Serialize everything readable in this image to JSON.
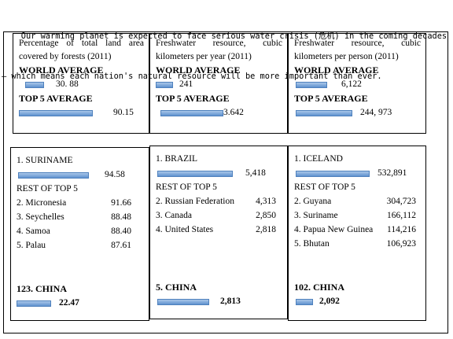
{
  "intro": {
    "line1": "    Our warming planet is expected to face serious water crisis (危机) in the coming decades",
    "line2": "— which means each nation's natural resource will be more important than ever."
  },
  "colors": {
    "bar_fill": "#5f92cf",
    "bar_border": "#4f81bd"
  },
  "top_boxes": [
    {
      "description_lines": [
        "Percentage of total land area",
        "covered by forests (2011)"
      ],
      "world_label": "WORLD AVERAGE",
      "world_value": "30. 88",
      "top5_label": "TOP 5 AVERAGE",
      "top5_value": "90.15"
    },
    {
      "description_lines": [
        "Freshwater resource, cubic",
        "kilometers per year (2011)"
      ],
      "world_label": "WORLD AVERAGE",
      "world_value": "241",
      "top5_label": "TOP 5 AVERAGE",
      "top5_value": "3.642"
    },
    {
      "description_lines": [
        "Freshwater resource, cubic",
        "kilometers per person (2011)"
      ],
      "world_label": "WORLD AVERAGE",
      "world_value": "6,122",
      "top5_label": "TOP 5 AVERAGE",
      "top5_value": "244, 973"
    }
  ],
  "bottom_boxes": [
    {
      "top_name": "1. SURINAME",
      "top_value": "94.58",
      "rest_label": "REST OF TOP 5",
      "rest": [
        {
          "name": "2. Micronesia",
          "value": "91.66"
        },
        {
          "name": "3. Seychelles",
          "value": "88.48"
        },
        {
          "name": "4. Samoa",
          "value": "88.40"
        },
        {
          "name": "5. Palau",
          "value": "87.61"
        }
      ],
      "china_label": "123. CHINA",
      "china_value": "22.47"
    },
    {
      "top_name": "1. BRAZIL",
      "top_value": "5,418",
      "rest_label": "REST OF TOP 5",
      "rest": [
        {
          "name": "2. Russian Federation",
          "value": "4,313"
        },
        {
          "name": "3. Canada",
          "value": "2,850"
        },
        {
          "name": "4. United States",
          "value": "2,818"
        }
      ],
      "china_label": "5. CHINA",
      "china_value": "2,813"
    },
    {
      "top_name": "1. ICELAND",
      "top_value": "532,891",
      "rest_label": "REST OF TOP 5",
      "rest": [
        {
          "name": "2. Guyana",
          "value": "304,723"
        },
        {
          "name": "3. Suriname",
          "value": "166,112"
        },
        {
          "name": "4. Papua New Guinea",
          "value": "114,216"
        },
        {
          "name": "5. Bhutan",
          "value": "106,923"
        }
      ],
      "china_label": "102. CHINA",
      "china_value": "2,092"
    }
  ]
}
